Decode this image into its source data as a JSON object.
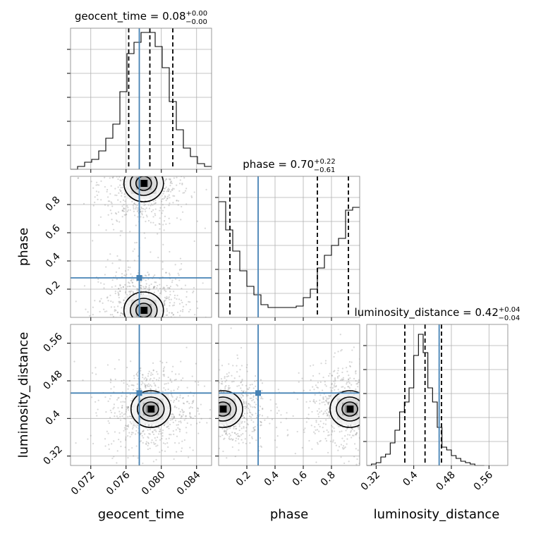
{
  "chart_data": [
    {
      "panel": "hist-geocent_time",
      "type": "histogram",
      "title": {
        "param": "geocent_time",
        "value": "0.08",
        "plus": "+0.00",
        "minus": "−0.00"
      },
      "xlim": [
        0.0697,
        0.0857
      ],
      "bins": [
        [
          0.0697,
          0.0705,
          0.0
        ],
        [
          0.0705,
          0.0713,
          0.02
        ],
        [
          0.0713,
          0.0721,
          0.05
        ],
        [
          0.0721,
          0.0729,
          0.07
        ],
        [
          0.0729,
          0.0737,
          0.13
        ],
        [
          0.0737,
          0.0745,
          0.22
        ],
        [
          0.0745,
          0.0753,
          0.32
        ],
        [
          0.0753,
          0.0761,
          0.55
        ],
        [
          0.0761,
          0.0769,
          0.82
        ],
        [
          0.0769,
          0.0777,
          0.9
        ],
        [
          0.0777,
          0.0785,
          0.97
        ],
        [
          0.0785,
          0.0793,
          0.97
        ],
        [
          0.0793,
          0.0801,
          0.87
        ],
        [
          0.0801,
          0.0809,
          0.72
        ],
        [
          0.0809,
          0.0817,
          0.48
        ],
        [
          0.0817,
          0.0825,
          0.28
        ],
        [
          0.0825,
          0.0833,
          0.15
        ],
        [
          0.0833,
          0.0841,
          0.09
        ],
        [
          0.0841,
          0.0849,
          0.04
        ],
        [
          0.0849,
          0.0857,
          0.02
        ]
      ],
      "quantiles": [
        0.0763,
        0.0787,
        0.0813
      ],
      "truth": 0.0775,
      "xticks": [
        0.072,
        0.076,
        0.08,
        0.084
      ]
    },
    {
      "panel": "hist-phase",
      "type": "histogram",
      "title": {
        "param": "phase",
        "value": "0.70",
        "plus": "+0.22",
        "minus": "−0.61"
      },
      "xlim": [
        0.0,
        1.0
      ],
      "bins": [
        [
          0.0,
          0.05,
          0.82
        ],
        [
          0.05,
          0.1,
          0.62
        ],
        [
          0.1,
          0.15,
          0.47
        ],
        [
          0.15,
          0.2,
          0.33
        ],
        [
          0.2,
          0.25,
          0.22
        ],
        [
          0.25,
          0.3,
          0.16
        ],
        [
          0.3,
          0.35,
          0.09
        ],
        [
          0.35,
          0.4,
          0.07
        ],
        [
          0.4,
          0.45,
          0.07
        ],
        [
          0.45,
          0.5,
          0.07
        ],
        [
          0.5,
          0.55,
          0.07
        ],
        [
          0.55,
          0.6,
          0.08
        ],
        [
          0.6,
          0.65,
          0.14
        ],
        [
          0.65,
          0.7,
          0.2
        ],
        [
          0.7,
          0.75,
          0.35
        ],
        [
          0.75,
          0.8,
          0.44
        ],
        [
          0.8,
          0.85,
          0.51
        ],
        [
          0.85,
          0.9,
          0.56
        ],
        [
          0.9,
          0.95,
          0.76
        ],
        [
          0.95,
          1.0,
          0.78
        ]
      ],
      "quantiles": [
        0.08,
        0.7,
        0.92
      ],
      "truth": 0.28,
      "xticks": [
        0.2,
        0.4,
        0.6,
        0.8
      ]
    },
    {
      "panel": "hist-luminosity_distance",
      "type": "histogram",
      "title": {
        "param": "luminosity_distance",
        "value": "0.42",
        "plus": "+0.04",
        "minus": "−0.04"
      },
      "xlim": [
        0.3,
        0.6
      ],
      "bins": [
        [
          0.3,
          0.31,
          0.0
        ],
        [
          0.31,
          0.32,
          0.01
        ],
        [
          0.32,
          0.33,
          0.02
        ],
        [
          0.33,
          0.34,
          0.06
        ],
        [
          0.34,
          0.35,
          0.08
        ],
        [
          0.35,
          0.36,
          0.16
        ],
        [
          0.36,
          0.37,
          0.25
        ],
        [
          0.37,
          0.38,
          0.38
        ],
        [
          0.38,
          0.39,
          0.45
        ],
        [
          0.39,
          0.4,
          0.55
        ],
        [
          0.4,
          0.41,
          0.78
        ],
        [
          0.41,
          0.42,
          0.93
        ],
        [
          0.42,
          0.43,
          0.8
        ],
        [
          0.43,
          0.44,
          0.55
        ],
        [
          0.44,
          0.45,
          0.45
        ],
        [
          0.45,
          0.46,
          0.27
        ],
        [
          0.46,
          0.47,
          0.13
        ],
        [
          0.47,
          0.48,
          0.11
        ],
        [
          0.48,
          0.49,
          0.07
        ],
        [
          0.49,
          0.5,
          0.05
        ],
        [
          0.5,
          0.51,
          0.03
        ],
        [
          0.51,
          0.52,
          0.02
        ],
        [
          0.52,
          0.53,
          0.01
        ],
        [
          0.53,
          0.54,
          0.0
        ],
        [
          0.54,
          0.55,
          0.0
        ]
      ],
      "quantiles": [
        0.381,
        0.424,
        0.459
      ],
      "truth": 0.454,
      "xticks": [
        0.32,
        0.4,
        0.48,
        0.56
      ]
    },
    {
      "panel": "2d-geocent_time-phase",
      "type": "scatter",
      "x_param": "geocent_time",
      "y_param": "phase",
      "xlim": [
        0.0697,
        0.0857
      ],
      "ylim": [
        0.0,
        1.0
      ],
      "density_peaks": [
        [
          0.078,
          0.95
        ],
        [
          0.078,
          0.05
        ]
      ],
      "truth": [
        0.0775,
        0.28
      ],
      "yticks": [
        0.2,
        0.4,
        0.6,
        0.8
      ]
    },
    {
      "panel": "2d-geocent_time-luminosity_distance",
      "type": "scatter",
      "x_param": "geocent_time",
      "y_param": "luminosity_distance",
      "xlim": [
        0.0697,
        0.0857
      ],
      "ylim": [
        0.3,
        0.6
      ],
      "density_peaks": [
        [
          0.0788,
          0.42
        ]
      ],
      "truth": [
        0.0775,
        0.454
      ],
      "yticks": [
        0.32,
        0.4,
        0.48,
        0.56
      ]
    },
    {
      "panel": "2d-phase-luminosity_distance",
      "type": "scatter",
      "x_param": "phase",
      "y_param": "luminosity_distance",
      "xlim": [
        0.0,
        1.0
      ],
      "ylim": [
        0.3,
        0.6
      ],
      "density_peaks": [
        [
          0.03,
          0.42
        ],
        [
          0.93,
          0.42
        ]
      ],
      "truth": [
        0.28,
        0.454
      ]
    }
  ],
  "axis_labels": {
    "x": [
      "geocent_time",
      "phase",
      "luminosity_distance"
    ],
    "y": [
      "phase",
      "luminosity_distance"
    ]
  },
  "colors": {
    "truth": "#4682b4",
    "hist": "#000000",
    "grid": "#b0b0b0",
    "points": "#8c8c8c"
  }
}
